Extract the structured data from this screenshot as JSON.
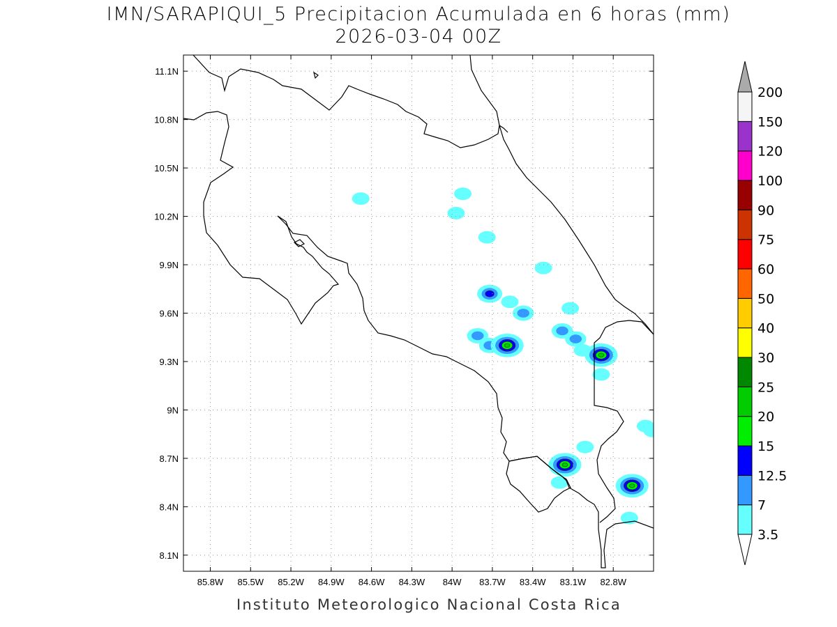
{
  "title": "IMN/SARAPIQUI_5 Precipitacion Acumulada en 6 horas (mm)",
  "subtitle": "2026-03-04 00Z",
  "credit": "Instituto Meteorologico Nacional Costa Rica",
  "map": {
    "lon_range": [
      -86.0,
      -82.5
    ],
    "lat_range": [
      8.0,
      11.2
    ],
    "lon_ticks": [
      "85.8W",
      "85.5W",
      "85.2W",
      "84.9W",
      "84.6W",
      "84.3W",
      "84W",
      "83.7W",
      "83.4W",
      "83.1W",
      "82.8W"
    ],
    "lat_ticks": [
      "11.1N",
      "10.8N",
      "10.5N",
      "10.2N",
      "9.9N",
      "9.6N",
      "9.3N",
      "9N",
      "8.7N",
      "8.4N",
      "8.1N"
    ]
  },
  "colorbar": {
    "labels": [
      "3.5",
      "7",
      "12.5",
      "15",
      "20",
      "25",
      "30",
      "40",
      "50",
      "60",
      "75",
      "90",
      "100",
      "120",
      "150",
      "200"
    ],
    "colors": [
      "#66ffff",
      "#3399ff",
      "#0000ff",
      "#00ee00",
      "#00cc00",
      "#008800",
      "#ffff00",
      "#ffcc00",
      "#ff6600",
      "#ff0000",
      "#cc3300",
      "#990000",
      "#ff00cc",
      "#9933cc",
      "#f5f5f5"
    ],
    "under_color": "#ffffff",
    "over_color": "#aaaaaa"
  },
  "precip_cells": [
    {
      "lon": -84.68,
      "lat": 10.31,
      "level": 1
    },
    {
      "lon": -83.97,
      "lat": 10.22,
      "level": 1
    },
    {
      "lon": -83.92,
      "lat": 10.34,
      "level": 1
    },
    {
      "lon": -83.74,
      "lat": 10.07,
      "level": 1
    },
    {
      "lon": -83.72,
      "lat": 9.72,
      "level": 3
    },
    {
      "lon": -83.57,
      "lat": 9.67,
      "level": 1
    },
    {
      "lon": -83.47,
      "lat": 9.6,
      "level": 2
    },
    {
      "lon": -83.72,
      "lat": 9.4,
      "level": 2
    },
    {
      "lon": -83.81,
      "lat": 9.46,
      "level": 2
    },
    {
      "lon": -83.59,
      "lat": 9.4,
      "level": 5
    },
    {
      "lon": -83.18,
      "lat": 9.49,
      "level": 2
    },
    {
      "lon": -83.08,
      "lat": 9.44,
      "level": 2
    },
    {
      "lon": -83.03,
      "lat": 9.37,
      "level": 1
    },
    {
      "lon": -82.89,
      "lat": 9.34,
      "level": 5
    },
    {
      "lon": -83.32,
      "lat": 9.88,
      "level": 1
    },
    {
      "lon": -83.12,
      "lat": 9.63,
      "level": 1
    },
    {
      "lon": -83.16,
      "lat": 8.66,
      "level": 5
    },
    {
      "lon": -82.66,
      "lat": 8.53,
      "level": 5
    },
    {
      "lon": -83.01,
      "lat": 8.77,
      "level": 1
    },
    {
      "lon": -83.2,
      "lat": 8.55,
      "level": 1
    },
    {
      "lon": -82.68,
      "lat": 8.33,
      "level": 1
    },
    {
      "lon": -82.89,
      "lat": 9.22,
      "level": 1
    },
    {
      "lon": -82.56,
      "lat": 8.9,
      "level": 1
    },
    {
      "lon": -82.51,
      "lat": 8.87,
      "level": 1
    }
  ]
}
